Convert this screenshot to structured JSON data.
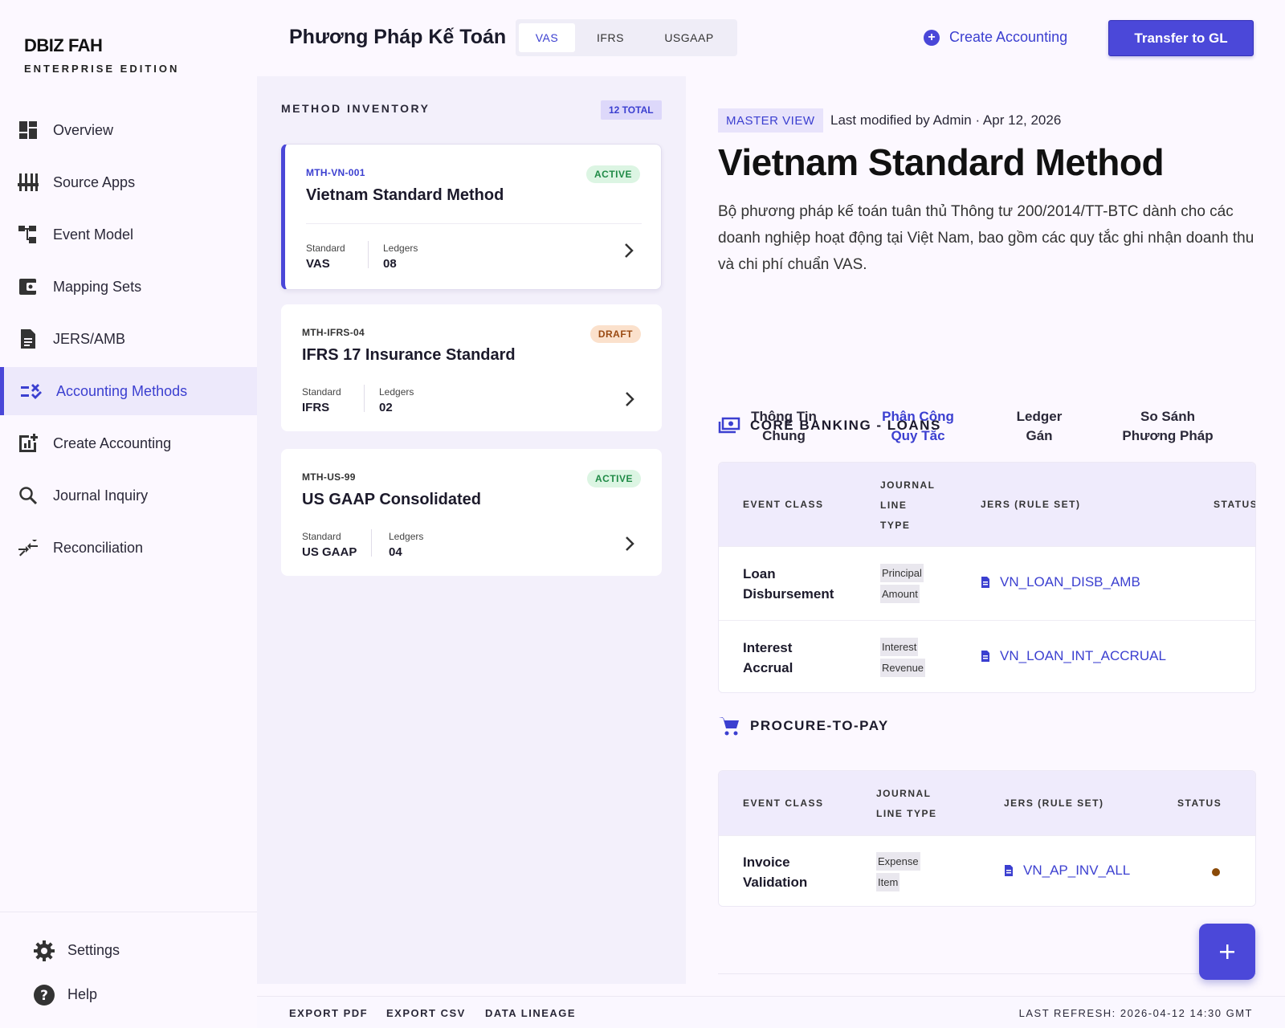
{
  "brand": {
    "name": "DBIZ FAH",
    "edition": "ENTERPRISE EDITION"
  },
  "nav": [
    {
      "label": "Overview",
      "icon": "dashboard-icon"
    },
    {
      "label": "Source Apps",
      "icon": "sliders-icon"
    },
    {
      "label": "Event Model",
      "icon": "tree-icon"
    },
    {
      "label": "Mapping Sets",
      "icon": "wallet-icon"
    },
    {
      "label": "JERS/AMB",
      "icon": "document-icon"
    },
    {
      "label": "Accounting Methods",
      "icon": "rule-icon",
      "active": true
    },
    {
      "label": "Create Accounting",
      "icon": "chart-add-icon"
    },
    {
      "label": "Journal Inquiry",
      "icon": "search-icon"
    },
    {
      "label": "Reconciliation",
      "icon": "compare-arrows-icon"
    }
  ],
  "sidebar_bottom": {
    "settings": "Settings",
    "help": "Help"
  },
  "header": {
    "title": "Phương Pháp Kế Toán",
    "standards": [
      "VAS",
      "IFRS",
      "USGAAP"
    ],
    "active_standard": "VAS",
    "create_link": "Create Accounting",
    "transfer_button": "Transfer to GL"
  },
  "inventory": {
    "heading": "METHOD INVENTORY",
    "total_badge": "12 TOTAL",
    "cards": [
      {
        "code": "MTH-VN-001",
        "name": "Vietnam Standard Method",
        "status": "ACTIVE",
        "standard_label": "Standard",
        "standard": "VAS",
        "ledgers_label": "Ledgers",
        "ledgers": "08"
      },
      {
        "code": "MTH-IFRS-04",
        "name": "IFRS 17 Insurance Standard",
        "status": "DRAFT",
        "standard_label": "Standard",
        "standard": "IFRS",
        "ledgers_label": "Ledgers",
        "ledgers": "02"
      },
      {
        "code": "MTH-US-99",
        "name": "US GAAP Consolidated",
        "status": "ACTIVE",
        "standard_label": "Standard",
        "standard": "US GAAP",
        "ledgers_label": "Ledgers",
        "ledgers": "04"
      }
    ]
  },
  "detail": {
    "view_badge": "MASTER VIEW",
    "modified": "Last modified by Admin · Apr 12, 2026",
    "title": "Vietnam Standard Method",
    "description": "Bộ phương pháp kế toán tuân thủ Thông tư 200/2014/TT-BTC dành cho các doanh nghiệp hoạt động tại Việt Nam, bao gồm các quy tắc ghi nhận doanh thu và chi phí chuẩn VAS.",
    "tabs": [
      {
        "l1": "Thông Tin",
        "l2": "Chung"
      },
      {
        "l1": "Phân Công",
        "l2": "Quy Tắc"
      },
      {
        "l1": "Ledger",
        "l2": "Gán"
      },
      {
        "l1": "So Sánh",
        "l2": "Phương Pháp"
      }
    ],
    "sections": [
      {
        "title": "CORE BANKING - LOANS",
        "icon": "money-icon",
        "headers": {
          "event": "EVENT CLASS",
          "jlt1": "JOURNAL",
          "jlt2": "LINE",
          "jlt3": "TYPE",
          "jers": "JERS (RULE SET)",
          "status": "STATUS"
        },
        "rows": [
          {
            "event1": "Loan",
            "event2": "Disbursement",
            "jlt1": "Principal",
            "jlt2": "Amount",
            "jers": "VN_LOAN_DISB_AMB"
          },
          {
            "event1": "Interest",
            "event2": "Accrual",
            "jlt1": "Interest",
            "jlt2": "Revenue",
            "jers": "VN_LOAN_INT_ACCRUAL"
          }
        ]
      },
      {
        "title": "PROCURE-TO-PAY",
        "icon": "cart-icon",
        "headers": {
          "event": "EVENT CLASS",
          "jlt1": "JOURNAL",
          "jlt2": "LINE TYPE",
          "jers": "JERS (RULE SET)",
          "status": "STATUS"
        },
        "rows": [
          {
            "event1": "Invoice",
            "event2": "Validation",
            "jlt1": "Expense",
            "jlt2": "Item",
            "jers": "VN_AP_INV_ALL",
            "status_color": "#8a4a08"
          }
        ]
      }
    ]
  },
  "footer": {
    "links": [
      "EXPORT PDF",
      "EXPORT CSV",
      "DATA LINEAGE"
    ],
    "refresh": "LAST REFRESH: 2026-04-12 14:30 GMT"
  },
  "colors": {
    "accent": "#4b48d9",
    "active_green": "#1f8a46",
    "draft_orange": "#9a4a12"
  }
}
